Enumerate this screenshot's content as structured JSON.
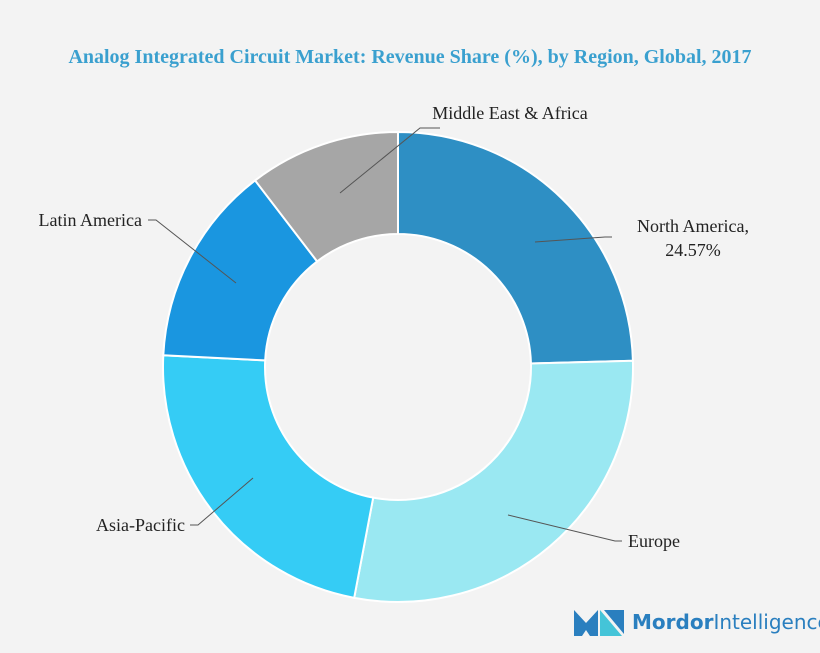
{
  "chart_data": {
    "type": "donut",
    "title": "Analog Integrated Circuit Market: Revenue Share (%), by Region, Global, 2017",
    "categories": [
      "North America,",
      "Europe",
      "Asia-Pacific",
      "Latin America",
      "Middle East & Africa"
    ],
    "values": [
      24.57,
      28.4,
      22.8,
      13.8,
      10.4
    ],
    "value_labels": [
      "24.57%",
      null,
      null,
      null,
      null
    ],
    "colors": [
      "#2e8fc4",
      "#9ae8f2",
      "#35ccf5",
      "#1a96e0",
      "#a6a6a6"
    ]
  },
  "logo": {
    "text_bold": "Mordor",
    "text_light": "Intelligence"
  }
}
